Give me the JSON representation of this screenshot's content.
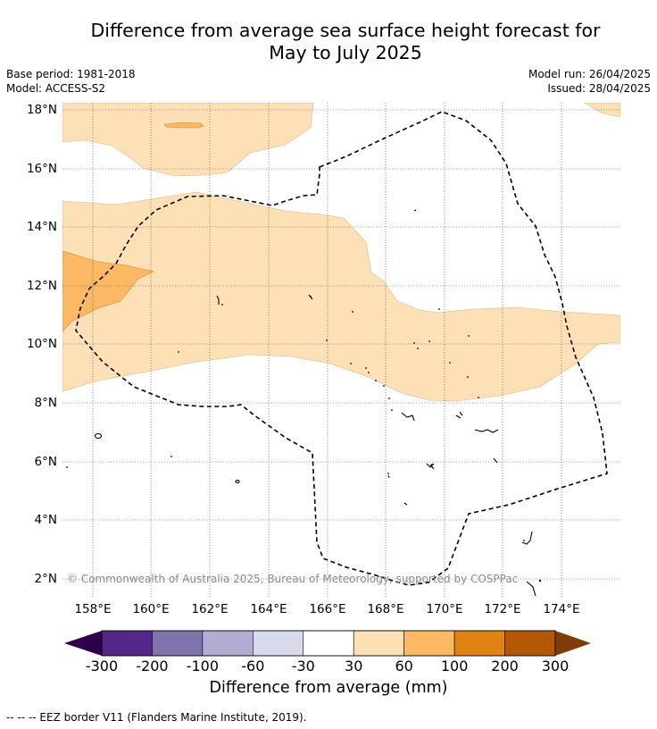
{
  "title_line1": "Difference from average sea surface height forecast for",
  "title_line2": "May to July 2025",
  "meta": {
    "base_period": "Base period: 1981-2018",
    "model": "Model: ACCESS-S2",
    "model_run": "Model run: 26/04/2025",
    "issued": "Issued: 28/04/2025"
  },
  "map": {
    "lat_labels": [
      "18°N",
      "16°N",
      "14°N",
      "12°N",
      "10°N",
      "8°N",
      "6°N",
      "4°N",
      "2°N"
    ],
    "lon_labels": [
      "158°E",
      "160°E",
      "162°E",
      "164°E",
      "166°E",
      "168°E",
      "170°E",
      "172°E",
      "174°E"
    ],
    "copyright": "© Commonwealth of Australia 2025, Bureau of Meteorology, supported by COSPPac"
  },
  "colorbar": {
    "label": "Difference from average (mm)",
    "ticks": [
      "-300",
      "-200",
      "-100",
      "-60",
      "-30",
      "30",
      "60",
      "100",
      "200",
      "300"
    ],
    "colors": [
      "#2d004b",
      "#542788",
      "#8073ac",
      "#b2abd2",
      "#d8daeb",
      "#ffffff",
      "#fee0b6",
      "#fdb863",
      "#e08214",
      "#b35806",
      "#7f3b08"
    ]
  },
  "footnote": "--  --  -- EEZ border V11 (Flanders Marine Institute, 2019)."
}
